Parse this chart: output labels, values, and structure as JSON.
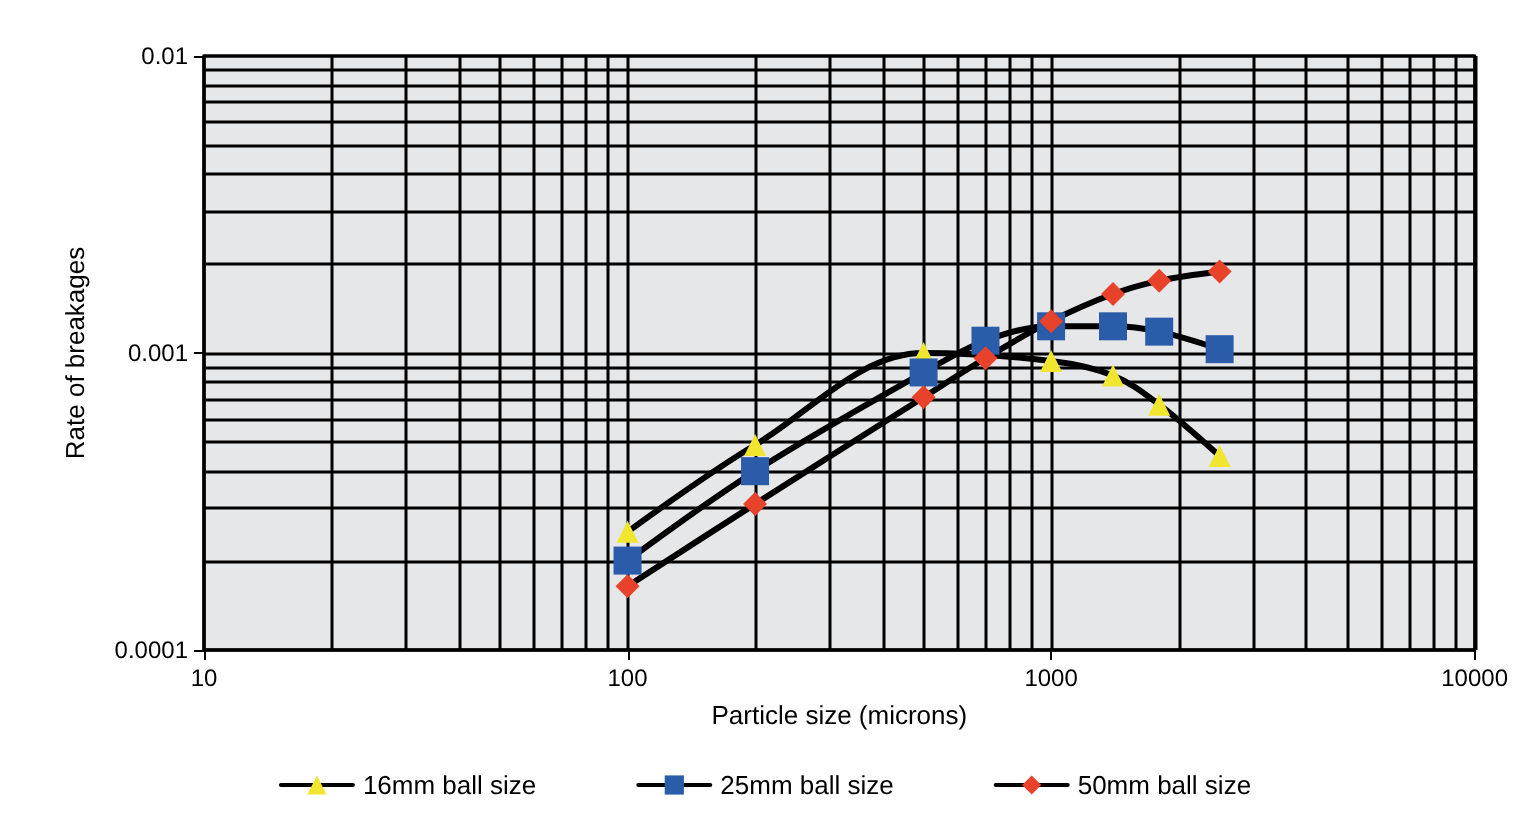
{
  "chart_data": {
    "type": "line",
    "xlabel": "Particle size (microns)",
    "ylabel": "Rate of breakages",
    "log": "xy",
    "x": [
      100,
      200,
      500,
      700,
      1000,
      1400,
      1800,
      2500
    ],
    "xlim": [
      10,
      10000
    ],
    "xticks": [
      10,
      100,
      1000,
      10000
    ],
    "ylim": [
      0.0001,
      0.01
    ],
    "yticks": [
      0.0001,
      0.001,
      0.01
    ],
    "grid": true,
    "legend": "bottom",
    "line_style": "solid",
    "series": [
      {
        "name": "16mm ball size",
        "color": "#f0e630",
        "marker": "triangle",
        "values": [
          0.00025,
          0.00049,
          0.001,
          null,
          0.00094,
          0.00084,
          0.00067,
          0.00045
        ]
      },
      {
        "name": "25mm ball size",
        "color": "#2a5caa",
        "marker": "square",
        "values": [
          0.0002,
          0.0004,
          0.00086,
          0.0011,
          0.00123,
          0.00123,
          0.00118,
          0.00103
        ]
      },
      {
        "name": "50mm ball size",
        "color": "#e8432a",
        "marker": "diamond",
        "values": [
          0.000164,
          0.00031,
          0.00071,
          0.00096,
          0.00128,
          0.00158,
          0.00175,
          0.00188
        ]
      }
    ]
  }
}
